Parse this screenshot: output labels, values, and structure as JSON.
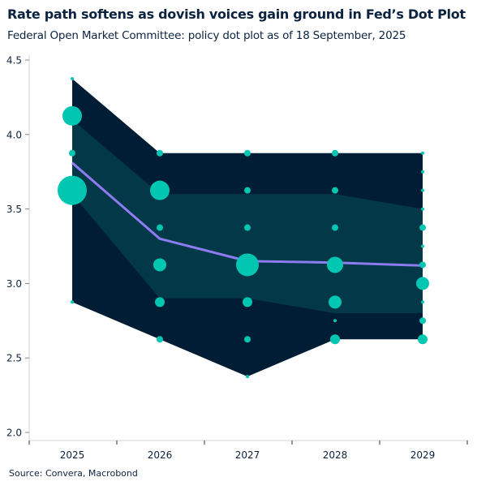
{
  "chart_data": {
    "type": "scatter",
    "title": "Rate path softens as dovish voices gain ground in Fed’s Dot Plot",
    "subtitle": "Federal Open Market Committee: policy dot plot as of 18 September, 2025",
    "source": "Source: Convera, Macrobond",
    "categories": [
      "2025",
      "2026",
      "2027",
      "2028",
      "2029"
    ],
    "ylim": [
      2.0,
      4.5
    ],
    "yticks": [
      "2.0",
      "2.5",
      "3.0",
      "3.5",
      "4.0",
      "4.5"
    ],
    "grid": false,
    "dots": [
      [
        {
          "y": 4.375,
          "n": 1
        },
        {
          "y": 4.125,
          "n": 6
        },
        {
          "y": 3.875,
          "n": 2
        },
        {
          "y": 3.625,
          "n": 9
        },
        {
          "y": 2.875,
          "n": 1
        }
      ],
      [
        {
          "y": 3.875,
          "n": 2
        },
        {
          "y": 3.625,
          "n": 6
        },
        {
          "y": 3.375,
          "n": 2
        },
        {
          "y": 3.125,
          "n": 4
        },
        {
          "y": 2.875,
          "n": 3
        },
        {
          "y": 2.625,
          "n": 2
        }
      ],
      [
        {
          "y": 3.875,
          "n": 2
        },
        {
          "y": 3.625,
          "n": 2
        },
        {
          "y": 3.375,
          "n": 2
        },
        {
          "y": 3.125,
          "n": 7
        },
        {
          "y": 2.875,
          "n": 3
        },
        {
          "y": 2.625,
          "n": 2
        },
        {
          "y": 2.375,
          "n": 1
        }
      ],
      [
        {
          "y": 3.875,
          "n": 2
        },
        {
          "y": 3.625,
          "n": 2
        },
        {
          "y": 3.375,
          "n": 2
        },
        {
          "y": 3.125,
          "n": 5
        },
        {
          "y": 2.875,
          "n": 4
        },
        {
          "y": 2.75,
          "n": 1
        },
        {
          "y": 2.625,
          "n": 3
        }
      ],
      [
        {
          "y": 3.875,
          "n": 1
        },
        {
          "y": 3.75,
          "n": 1
        },
        {
          "y": 3.625,
          "n": 1
        },
        {
          "y": 3.5,
          "n": 1
        },
        {
          "y": 3.375,
          "n": 2
        },
        {
          "y": 3.25,
          "n": 1
        },
        {
          "y": 3.125,
          "n": 2
        },
        {
          "y": 3.0,
          "n": 4
        },
        {
          "y": 2.875,
          "n": 1
        },
        {
          "y": 2.75,
          "n": 2
        },
        {
          "y": 2.625,
          "n": 3
        }
      ]
    ],
    "range_band": {
      "low": [
        2.875,
        2.625,
        2.375,
        2.625,
        2.625
      ],
      "high": [
        4.375,
        3.875,
        3.875,
        3.875,
        3.875
      ]
    },
    "central_band": {
      "low": [
        3.6,
        2.9,
        2.9,
        2.8,
        2.8
      ],
      "high": [
        4.1,
        3.6,
        3.6,
        3.6,
        3.5
      ]
    },
    "line": [
      3.81,
      3.3,
      3.15,
      3.14,
      3.12
    ],
    "colors": {
      "range_band": "#001d36",
      "central_band": "#023848",
      "dots": "#00c6b2",
      "line": "#8c7cf0",
      "text": "#0c2340"
    }
  }
}
